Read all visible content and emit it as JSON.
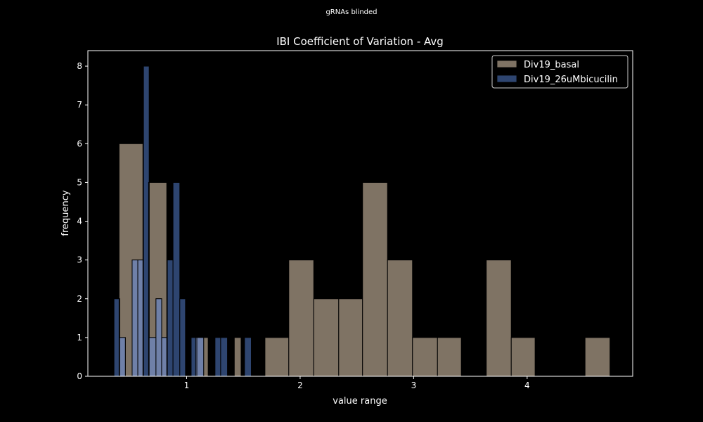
{
  "figure": {
    "suptitle": "gRNAs blinded",
    "background": "#000000",
    "text_color": "#ffffff"
  },
  "chart_data": {
    "type": "bar",
    "title": "IBI Coefficient of Variation - Avg",
    "xlabel": "value range",
    "ylabel": "frequency",
    "xlim": [
      0.13,
      4.93
    ],
    "ylim": [
      0,
      8.4
    ],
    "xticks": [
      1,
      2,
      3,
      4
    ],
    "yticks": [
      0,
      1,
      2,
      3,
      4,
      5,
      6,
      7,
      8
    ],
    "legend_position": "upper right",
    "series": [
      {
        "name": "Div19_basal",
        "color": "#7f7364",
        "bins": [
          {
            "x0": 0.405,
            "x1": 0.615,
            "count": 6
          },
          {
            "x0": 0.665,
            "x1": 0.825,
            "count": 5
          },
          {
            "x0": 1.08,
            "x1": 1.19,
            "count": 1
          },
          {
            "x0": 1.42,
            "x1": 1.48,
            "count": 1
          },
          {
            "x0": 1.69,
            "x1": 1.9,
            "count": 1
          },
          {
            "x0": 1.9,
            "x1": 2.12,
            "count": 3
          },
          {
            "x0": 2.12,
            "x1": 2.34,
            "count": 2
          },
          {
            "x0": 2.34,
            "x1": 2.55,
            "count": 2
          },
          {
            "x0": 2.55,
            "x1": 2.77,
            "count": 5
          },
          {
            "x0": 2.77,
            "x1": 2.99,
            "count": 3
          },
          {
            "x0": 2.99,
            "x1": 3.21,
            "count": 1
          },
          {
            "x0": 3.21,
            "x1": 3.42,
            "count": 1
          },
          {
            "x0": 3.64,
            "x1": 3.86,
            "count": 3
          },
          {
            "x0": 3.86,
            "x1": 4.07,
            "count": 1
          },
          {
            "x0": 4.51,
            "x1": 4.73,
            "count": 1
          }
        ]
      },
      {
        "name": "Div19_26uMbicucilin",
        "color": "#2e4570",
        "overlap_color": "#6f80a8",
        "bins": [
          {
            "x0": 0.36,
            "x1": 0.41,
            "count": 2
          },
          {
            "x0": 0.41,
            "x1": 0.46,
            "count": 1
          },
          {
            "x0": 0.46,
            "x1": 0.52,
            "count": 0
          },
          {
            "x0": 0.52,
            "x1": 0.57,
            "count": 3
          },
          {
            "x0": 0.57,
            "x1": 0.62,
            "count": 3
          },
          {
            "x0": 0.62,
            "x1": 0.67,
            "count": 8
          },
          {
            "x0": 0.67,
            "x1": 0.73,
            "count": 1
          },
          {
            "x0": 0.73,
            "x1": 0.78,
            "count": 2
          },
          {
            "x0": 0.78,
            "x1": 0.83,
            "count": 1
          },
          {
            "x0": 0.83,
            "x1": 0.88,
            "count": 3
          },
          {
            "x0": 0.88,
            "x1": 0.94,
            "count": 5
          },
          {
            "x0": 0.94,
            "x1": 0.99,
            "count": 2
          },
          {
            "x0": 1.04,
            "x1": 1.09,
            "count": 1
          },
          {
            "x0": 1.09,
            "x1": 1.15,
            "count": 1
          },
          {
            "x0": 1.25,
            "x1": 1.3,
            "count": 1
          },
          {
            "x0": 1.3,
            "x1": 1.36,
            "count": 1
          },
          {
            "x0": 1.51,
            "x1": 1.57,
            "count": 1
          }
        ]
      }
    ]
  }
}
